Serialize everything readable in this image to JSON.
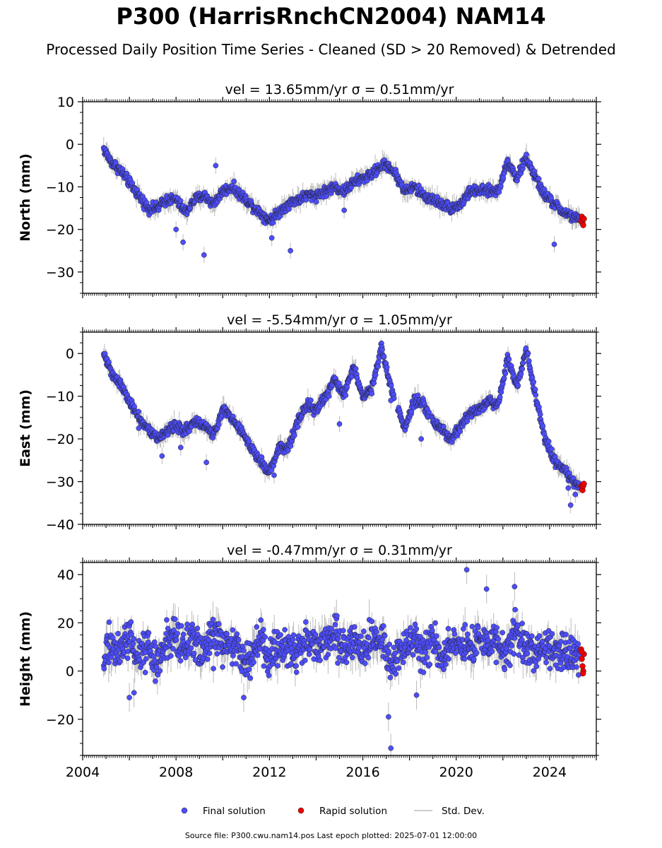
{
  "figure": {
    "title": "P300 (HarrisRnchCN2004) NAM14",
    "subtitle": "Processed Daily Position Time Series - Cleaned (SD > 20 Removed) & Detrended",
    "footer": "Source file: P300.cwu.nam14.pos  Last epoch plotted: 2025-07-01 12:00:00"
  },
  "legend": {
    "final": "Final solution",
    "rapid": "Rapid solution",
    "std": "Std. Dev."
  },
  "colors": {
    "final": "#4d4dff",
    "rapid": "#ee0000",
    "std": "#bbbbbb",
    "marker_edge": "#222222"
  },
  "chart_data": [
    {
      "type": "scatter",
      "panel": "north",
      "title": "vel = 13.65mm/yr   σ = 0.51mm/yr",
      "ylabel": "North (mm)",
      "xlabel": "",
      "xlim": [
        2004.0,
        2026.0
      ],
      "ylim": [
        -35,
        10
      ],
      "yticks": [
        -30,
        -20,
        -10,
        0,
        10
      ],
      "xticks": [
        2004,
        2008,
        2012,
        2016,
        2020,
        2024
      ],
      "show_xtick_labels": false,
      "grid": false,
      "series": [
        {
          "name": "Final solution",
          "role": "final",
          "x": [
            2004.9,
            2005.2,
            2005.6,
            2006.0,
            2006.4,
            2006.8,
            2007.2,
            2007.6,
            2008.0,
            2008.4,
            2008.8,
            2009.2,
            2009.6,
            2010.0,
            2010.4,
            2010.8,
            2011.2,
            2011.6,
            2012.0,
            2012.4,
            2012.8,
            2013.2,
            2013.6,
            2014.0,
            2014.4,
            2014.8,
            2015.2,
            2015.6,
            2016.0,
            2016.4,
            2016.8,
            2017.1,
            2017.4,
            2017.8,
            2018.2,
            2018.6,
            2019.0,
            2019.4,
            2019.8,
            2020.2,
            2020.6,
            2021.0,
            2021.4,
            2021.8,
            2022.2,
            2022.6,
            2023.0,
            2023.4,
            2023.8,
            2024.2,
            2024.6,
            2025.0,
            2025.3
          ],
          "y": [
            -1,
            -4,
            -6,
            -9,
            -12,
            -15,
            -15,
            -13,
            -13,
            -16,
            -13,
            -12,
            -14,
            -11,
            -10,
            -12,
            -14,
            -16,
            -18,
            -16,
            -14,
            -13,
            -12,
            -12,
            -11,
            -10,
            -11,
            -9,
            -8,
            -7,
            -5,
            -5,
            -7,
            -11,
            -10,
            -12,
            -13,
            -14,
            -15,
            -14,
            -11,
            -11,
            -11,
            -11,
            -4,
            -8,
            -3,
            -8,
            -12,
            -14,
            -16,
            -17,
            -18
          ]
        },
        {
          "name": "Rapid solution",
          "role": "rapid",
          "x": [
            2025.35,
            2025.38,
            2025.41,
            2025.44,
            2025.47
          ],
          "y": [
            -18,
            -17,
            -18.5,
            -19,
            -17.5
          ]
        }
      ],
      "outliers": {
        "x": [
          2008.0,
          2008.3,
          2009.2,
          2009.7,
          2012.1,
          2012.9,
          2015.2,
          2024.2
        ],
        "y": [
          -20,
          -23,
          -26,
          -5,
          -22,
          -25,
          -15.5,
          -23.5
        ]
      }
    },
    {
      "type": "scatter",
      "panel": "east",
      "title": "vel = -5.54mm/yr   σ = 1.05mm/yr",
      "ylabel": "East (mm)",
      "xlabel": "",
      "xlim": [
        2004.0,
        2026.0
      ],
      "ylim": [
        -40,
        5
      ],
      "yticks": [
        -40,
        -30,
        -20,
        -10,
        0
      ],
      "xticks": [
        2004,
        2008,
        2012,
        2016,
        2020,
        2024
      ],
      "show_xtick_labels": false,
      "grid": false,
      "series": [
        {
          "name": "Final solution",
          "role": "final",
          "x": [
            2004.9,
            2005.2,
            2005.6,
            2006.0,
            2006.4,
            2006.8,
            2007.2,
            2007.6,
            2008.0,
            2008.4,
            2008.8,
            2009.2,
            2009.6,
            2010.0,
            2010.4,
            2010.8,
            2011.2,
            2011.6,
            2012.0,
            2012.4,
            2012.8,
            2013.2,
            2013.6,
            2014.0,
            2014.4,
            2014.8,
            2015.2,
            2015.6,
            2016.0,
            2016.4,
            2016.8,
            2017.1,
            2017.4,
            2017.8,
            2018.2,
            2018.6,
            2019.0,
            2019.4,
            2019.8,
            2020.2,
            2020.6,
            2021.0,
            2021.4,
            2021.8,
            2022.2,
            2022.6,
            2023.0,
            2023.4,
            2023.8,
            2024.2,
            2024.6,
            2025.0,
            2025.3
          ],
          "y": [
            0,
            -4,
            -7,
            -11,
            -15,
            -18,
            -20,
            -18,
            -17,
            -18,
            -16,
            -17,
            -19,
            -13,
            -15,
            -18,
            -22,
            -25,
            -28,
            -22,
            -22,
            -16,
            -12,
            -13,
            -10,
            -6,
            -10,
            -3,
            -10,
            -8,
            2,
            -6,
            -11,
            -18,
            -11,
            -12,
            -16,
            -18,
            -20,
            -17,
            -14,
            -13,
            -11,
            -12,
            -1,
            -8,
            1,
            -10,
            -20,
            -25,
            -27,
            -30,
            -31
          ]
        },
        {
          "name": "Rapid solution",
          "role": "rapid",
          "x": [
            2025.35,
            2025.38,
            2025.41,
            2025.44,
            2025.47
          ],
          "y": [
            -31,
            -31.5,
            -32,
            -31,
            -30.5
          ]
        }
      ],
      "outliers": {
        "x": [
          2006.4,
          2007.4,
          2008.2,
          2009.3,
          2012.2,
          2015.0,
          2017.2,
          2018.5,
          2024.8,
          2024.9,
          2025.1
        ],
        "y": [
          -17.5,
          -24,
          -22,
          -25.5,
          -28.5,
          -16.5,
          -11,
          -20,
          -31.5,
          -35.5,
          -33
        ]
      }
    },
    {
      "type": "scatter",
      "panel": "height",
      "title": "vel = -0.47mm/yr   σ = 0.31mm/yr",
      "ylabel": "Height (mm)",
      "xlabel": "",
      "xlim": [
        2004.0,
        2026.0
      ],
      "ylim": [
        -35,
        45
      ],
      "yticks": [
        -20,
        0,
        20,
        40
      ],
      "xticks": [
        2004,
        2008,
        2012,
        2016,
        2020,
        2024
      ],
      "show_xtick_labels": true,
      "grid": false,
      "series": [
        {
          "name": "Final solution",
          "role": "final",
          "x": [
            2004.9,
            2005.2,
            2005.6,
            2006.0,
            2006.4,
            2006.8,
            2007.2,
            2007.6,
            2008.0,
            2008.4,
            2008.8,
            2009.2,
            2009.6,
            2010.0,
            2010.4,
            2010.8,
            2011.2,
            2011.6,
            2012.0,
            2012.4,
            2012.8,
            2013.2,
            2013.6,
            2014.0,
            2014.4,
            2014.8,
            2015.2,
            2015.6,
            2016.0,
            2016.4,
            2016.8,
            2017.1,
            2017.4,
            2017.8,
            2018.2,
            2018.6,
            2019.0,
            2019.4,
            2019.8,
            2020.2,
            2020.6,
            2021.0,
            2021.4,
            2021.8,
            2022.2,
            2022.6,
            2023.0,
            2023.4,
            2023.8,
            2024.2,
            2024.6,
            2025.0,
            2025.3
          ],
          "y": [
            5,
            12,
            8,
            14,
            6,
            10,
            4,
            12,
            16,
            10,
            14,
            6,
            18,
            10,
            12,
            8,
            4,
            12,
            6,
            10,
            12,
            8,
            14,
            10,
            12,
            16,
            10,
            14,
            8,
            12,
            16,
            4,
            6,
            10,
            12,
            8,
            14,
            6,
            10,
            12,
            8,
            14,
            10,
            12,
            8,
            16,
            10,
            6,
            12,
            8,
            10,
            6,
            5
          ]
        },
        {
          "name": "Rapid solution",
          "role": "rapid",
          "x": [
            2025.35,
            2025.38,
            2025.41,
            2025.44,
            2025.47,
            2025.37,
            2025.43
          ],
          "y": [
            9,
            5,
            2,
            0,
            7,
            8,
            -1
          ]
        }
      ],
      "outliers": {
        "x": [
          2006.0,
          2006.2,
          2009.6,
          2010.9,
          2017.1,
          2017.2,
          2018.3,
          2020.45,
          2021.3,
          2022.5
        ],
        "y": [
          -11,
          -9,
          1,
          -11,
          -19,
          -32,
          -10,
          42,
          34,
          35
        ]
      }
    }
  ]
}
